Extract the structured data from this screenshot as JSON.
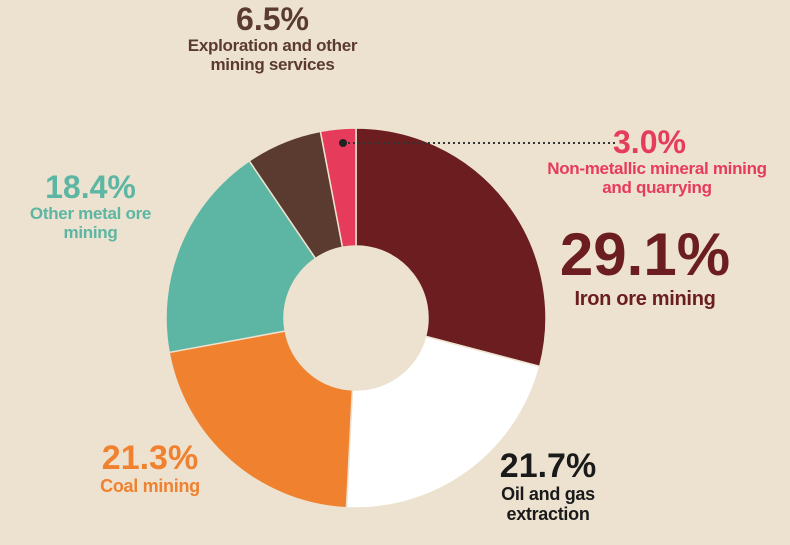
{
  "chart_data": {
    "type": "donut",
    "categories": [
      "Iron ore mining",
      "Oil and gas extraction",
      "Coal mining",
      "Other metal ore mining",
      "Exploration and other mining services",
      "Non-metallic mineral mining and quarrying"
    ],
    "values": [
      29.1,
      21.7,
      21.3,
      18.4,
      6.5,
      3.0
    ],
    "value_labels": [
      "29.1%",
      "21.7%",
      "21.3%",
      "18.4%",
      "6.5%",
      "3.0%"
    ],
    "colors": [
      "#6b1d1f",
      "#ffffff",
      "#f0812f",
      "#5cb6a3",
      "#5b3b2f",
      "#e63b5b"
    ]
  }
}
